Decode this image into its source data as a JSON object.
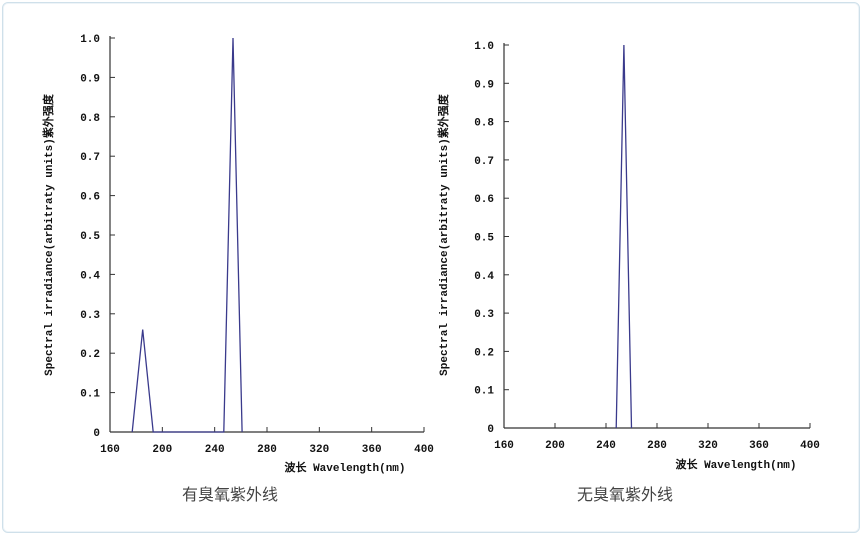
{
  "chart_data": [
    {
      "type": "line",
      "caption": "有臭氧紫外线",
      "xlabel": "波长 Wavelength(nm)",
      "ylabel": "Spectral irradiance(arbitraty units)紫外强度",
      "xlim": [
        160,
        400
      ],
      "ylim": [
        0,
        1.0
      ],
      "xticks": [
        "160",
        "200",
        "240",
        "280",
        "320",
        "360",
        "400"
      ],
      "yticks": [
        "0",
        "0.1",
        "0.2",
        "0.3",
        "0.4",
        "0.5",
        "0.6",
        "0.7",
        "0.8",
        "0.9",
        "1.0"
      ],
      "line_color": "#3a3a8c",
      "series": [
        {
          "x": [
            177,
            185,
            193,
            247,
            254,
            261
          ],
          "y": [
            0,
            0.26,
            0,
            0,
            1.0,
            0
          ]
        }
      ]
    },
    {
      "type": "line",
      "caption": "无臭氧紫外线",
      "xlabel": "波长 Wavelength(nm)",
      "ylabel": "Spectral irradiance(arbitraty units)紫外强度",
      "xlim": [
        160,
        400
      ],
      "ylim": [
        0,
        1.0
      ],
      "xticks": [
        "160",
        "200",
        "240",
        "280",
        "320",
        "360",
        "400"
      ],
      "yticks": [
        "0",
        "0.1",
        "0.2",
        "0.3",
        "0.4",
        "0.5",
        "0.6",
        "0.7",
        "0.8",
        "0.9",
        "1.0"
      ],
      "line_color": "#3a3a8c",
      "series": [
        {
          "x": [
            248,
            254,
            260
          ],
          "y": [
            0,
            1.0,
            0
          ]
        }
      ]
    }
  ]
}
